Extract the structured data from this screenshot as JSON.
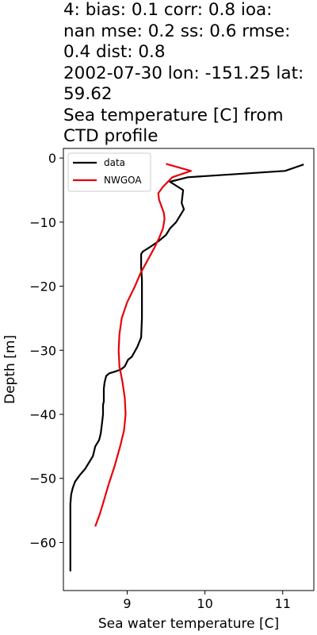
{
  "chart_data": {
    "type": "line",
    "title": "4: bias: 0.1  corr: 0.8  ioa:\nnan  mse: 0.2  ss: 0.6  rmse:\n0.4  dist: 0.8\n2002-07-30 lon: -151.25 lat:\n59.62\nSea temperature [C] from\nCTD profile",
    "xlabel": "Sea water temperature [C]",
    "ylabel": "Depth [m]",
    "xlim": [
      8.18,
      11.4
    ],
    "ylim": [
      -67.5,
      1.5
    ],
    "xticks": [
      9,
      10,
      11
    ],
    "yticks": [
      0,
      -10,
      -20,
      -30,
      -40,
      -50,
      -60
    ],
    "xtick_labels": [
      "9",
      "10",
      "11"
    ],
    "ytick_labels": [
      "0",
      "−10",
      "−20",
      "−30",
      "−40",
      "−50",
      "−60"
    ],
    "legend_position": "top-left",
    "series": [
      {
        "name": "data",
        "color": "#000000",
        "points": [
          [
            11.27,
            -1.0
          ],
          [
            11.03,
            -2.0
          ],
          [
            9.78,
            -3.0
          ],
          [
            9.55,
            -3.7
          ],
          [
            9.72,
            -5.0
          ],
          [
            9.7,
            -7.0
          ],
          [
            9.73,
            -8.0
          ],
          [
            9.63,
            -10.0
          ],
          [
            9.55,
            -11.0
          ],
          [
            9.5,
            -12.0
          ],
          [
            9.4,
            -13.0
          ],
          [
            9.28,
            -14.0
          ],
          [
            9.2,
            -14.6
          ],
          [
            9.18,
            -15.0
          ],
          [
            9.18,
            -17.0
          ],
          [
            9.19,
            -19.0
          ],
          [
            9.19,
            -25.0
          ],
          [
            9.18,
            -28.0
          ],
          [
            9.13,
            -29.5
          ],
          [
            9.06,
            -31.0
          ],
          [
            9.01,
            -31.5
          ],
          [
            8.99,
            -32.0
          ],
          [
            8.97,
            -32.5
          ],
          [
            8.92,
            -33.0
          ],
          [
            8.85,
            -33.3
          ],
          [
            8.77,
            -33.6
          ],
          [
            8.73,
            -34.0
          ],
          [
            8.71,
            -35.0
          ],
          [
            8.7,
            -36.0
          ],
          [
            8.7,
            -37.0
          ],
          [
            8.7,
            -38.0
          ],
          [
            8.69,
            -38.5
          ],
          [
            8.69,
            -39.0
          ],
          [
            8.69,
            -40.0
          ],
          [
            8.68,
            -41.0
          ],
          [
            8.67,
            -42.0
          ],
          [
            8.66,
            -43.0
          ],
          [
            8.64,
            -44.0
          ],
          [
            8.59,
            -45.0
          ],
          [
            8.56,
            -46.5
          ],
          [
            8.51,
            -47.5
          ],
          [
            8.46,
            -48.5
          ],
          [
            8.39,
            -49.5
          ],
          [
            8.33,
            -50.5
          ],
          [
            8.3,
            -51.5
          ],
          [
            8.28,
            -52.5
          ],
          [
            8.27,
            -54.0
          ],
          [
            8.27,
            -56.0
          ],
          [
            8.27,
            -60.0
          ],
          [
            8.27,
            -64.5
          ]
        ]
      },
      {
        "name": "NWGOA",
        "color": "#e8000b",
        "points": [
          [
            9.5,
            -0.9
          ],
          [
            9.82,
            -2.0
          ],
          [
            9.58,
            -3.0
          ],
          [
            9.46,
            -4.5
          ],
          [
            9.4,
            -5.5
          ],
          [
            9.41,
            -6.5
          ],
          [
            9.44,
            -7.5
          ],
          [
            9.47,
            -8.5
          ],
          [
            9.48,
            -9.5
          ],
          [
            9.46,
            -11.0
          ],
          [
            9.41,
            -12.5
          ],
          [
            9.35,
            -14.0
          ],
          [
            9.26,
            -16.0
          ],
          [
            9.17,
            -18.0
          ],
          [
            9.1,
            -20.0
          ],
          [
            9.0,
            -22.5
          ],
          [
            8.93,
            -25.0
          ],
          [
            8.9,
            -27.5
          ],
          [
            8.89,
            -30.0
          ],
          [
            8.9,
            -32.5
          ],
          [
            8.94,
            -35.0
          ],
          [
            8.97,
            -37.5
          ],
          [
            8.98,
            -40.0
          ],
          [
            8.96,
            -42.5
          ],
          [
            8.91,
            -45.0
          ],
          [
            8.84,
            -48.0
          ],
          [
            8.76,
            -51.0
          ],
          [
            8.7,
            -53.5
          ],
          [
            8.65,
            -55.5
          ],
          [
            8.59,
            -57.5
          ]
        ]
      }
    ]
  }
}
